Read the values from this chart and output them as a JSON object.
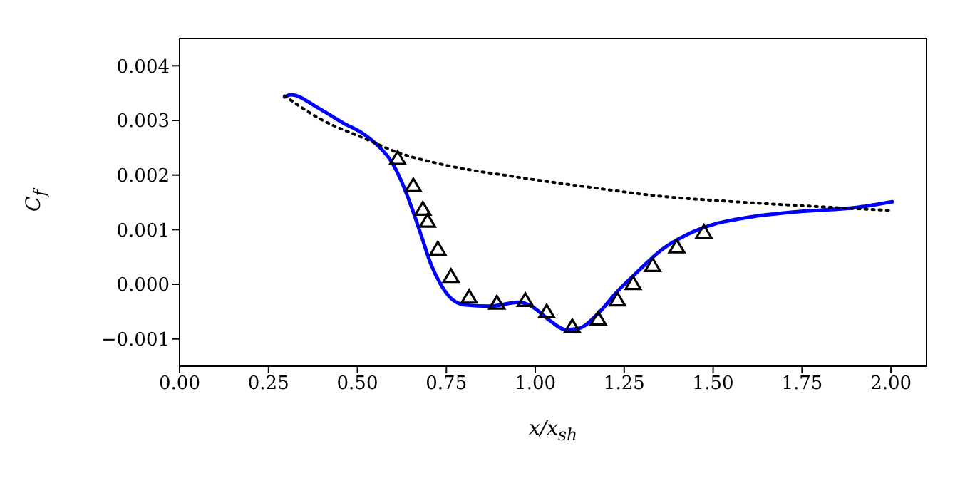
{
  "chart_data": {
    "type": "line",
    "xlabel": "x/x$_{sh}$",
    "ylabel": "C$_{f}$",
    "xlim": [
      0,
      2.1
    ],
    "ylim": [
      -0.0015,
      0.0045
    ],
    "xticks": [
      {
        "value": 0,
        "label": "0.00"
      },
      {
        "value": 0.25,
        "label": "0.25"
      },
      {
        "value": 0.5,
        "label": "0.50"
      },
      {
        "value": 0.75,
        "label": "0.75"
      },
      {
        "value": 1,
        "label": "1.00"
      },
      {
        "value": 1.25,
        "label": "1.25"
      },
      {
        "value": 1.5,
        "label": "1.50"
      },
      {
        "value": 1.75,
        "label": "1.75"
      },
      {
        "value": 2,
        "label": "2.00"
      }
    ],
    "yticks": [
      {
        "value": -0.001,
        "label": "−0.001"
      },
      {
        "value": 0,
        "label": "0.000"
      },
      0.001,
      0.002,
      0.003,
      0.004
    ],
    "grid": false,
    "series": [
      {
        "color": "#0000ff",
        "line_style": "solid",
        "marker": "none",
        "x": [
          0.295,
          0.313,
          0.389,
          0.458,
          0.52,
          0.562,
          0.596,
          0.624,
          0.651,
          0.679,
          0.707,
          0.734,
          0.762,
          0.803,
          0.872,
          0.955,
          0.989,
          1.038,
          1.086,
          1.121,
          1.176,
          1.231,
          1.286,
          1.355,
          1.424,
          1.493,
          1.603,
          1.742,
          1.907,
          2.004
        ],
        "values": [
          0.00343,
          0.00347,
          0.00323,
          0.00296,
          0.00274,
          0.00251,
          0.00224,
          0.00188,
          0.00143,
          0.0009,
          0.00036,
          0,
          -0.00025,
          -0.00038,
          -0.0004,
          -0.00033,
          -0.0004,
          -0.00065,
          -0.00083,
          -0.00081,
          -0.00054,
          -0.00013,
          0.00022,
          0.00063,
          0.0009,
          0.00108,
          0.00123,
          0.00133,
          0.00141,
          0.00151
        ]
      },
      {
        "color": "#000000",
        "line_style": "dotted",
        "marker": "none",
        "x": [
          0.295,
          0.389,
          0.527,
          0.61,
          0.734,
          0.941,
          1.148,
          1.355,
          1.562,
          1.769,
          2.004
        ],
        "values": [
          0.00345,
          0.00305,
          0.00265,
          0.00242,
          0.0022,
          0.00197,
          0.00178,
          0.00161,
          0.00151,
          0.00143,
          0.00135
        ]
      },
      {
        "type": "scatter",
        "color": "#000000",
        "marker": "triangle",
        "x": [
          0.613,
          0.657,
          0.684,
          0.697,
          0.726,
          0.763,
          0.814,
          0.892,
          0.972,
          1.032,
          1.104,
          1.177,
          1.231,
          1.275,
          1.33,
          1.398,
          1.474
        ],
        "values": [
          0.00229,
          0.00179,
          0.00136,
          0.00114,
          0.00063,
          0.00013,
          -0.00025,
          -0.00036,
          -0.00031,
          -0.00052,
          -0.00079,
          -0.00065,
          -0.0003,
          0,
          0.00033,
          0.00067,
          0.00094
        ]
      }
    ]
  }
}
